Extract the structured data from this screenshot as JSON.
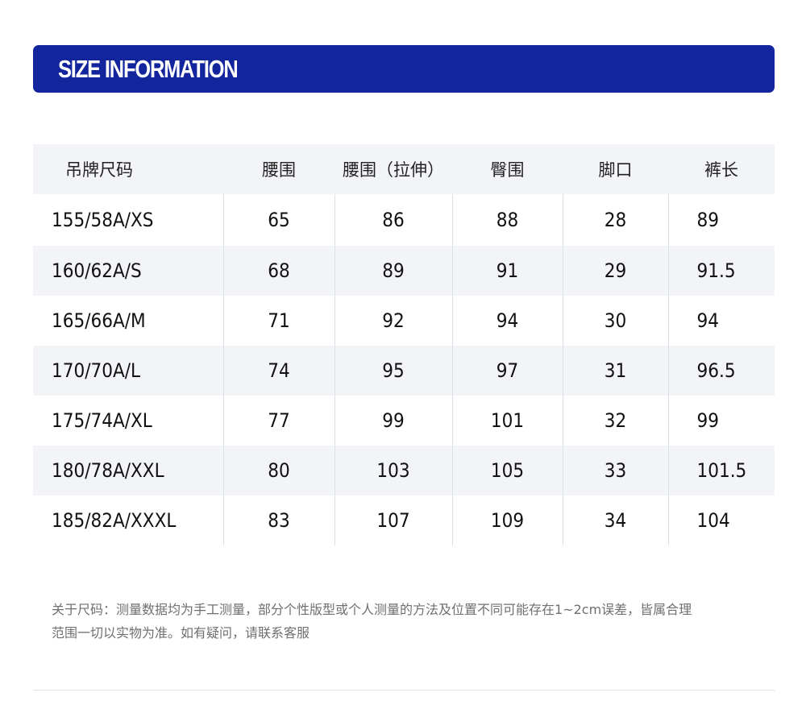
{
  "banner": {
    "title": "SIZE INFORMATION"
  },
  "table": {
    "headers": [
      "吊牌尺码",
      "腰围",
      "腰围（拉伸）",
      "臀围",
      "脚口",
      "裤长"
    ],
    "rows": [
      [
        "155/58A/XS",
        "65",
        "86",
        "88",
        "28",
        "89"
      ],
      [
        "160/62A/S",
        "68",
        "89",
        "91",
        "29",
        "91.5"
      ],
      [
        "165/66A/M",
        "71",
        "92",
        "94",
        "30",
        "94"
      ],
      [
        "170/70A/L",
        "74",
        "95",
        "97",
        "31",
        "96.5"
      ],
      [
        "175/74A/XL",
        "77",
        "99",
        "101",
        "32",
        "99"
      ],
      [
        "180/78A/XXL",
        "80",
        "103",
        "105",
        "33",
        "101.5"
      ],
      [
        "185/82A/XXXL",
        "83",
        "107",
        "109",
        "34",
        "104"
      ]
    ]
  },
  "note": {
    "line1": "关于尺码：测量数据均为手工测量，部分个性版型或个人测量的方法及位置不同可能存在1~2cm误差，皆属合理",
    "line2": "范围一切以实物为准。如有疑问，请联系客服"
  },
  "colors": {
    "banner": "#13259c",
    "stripe": "#f2f4f8",
    "note_text": "#6f6f6f"
  }
}
